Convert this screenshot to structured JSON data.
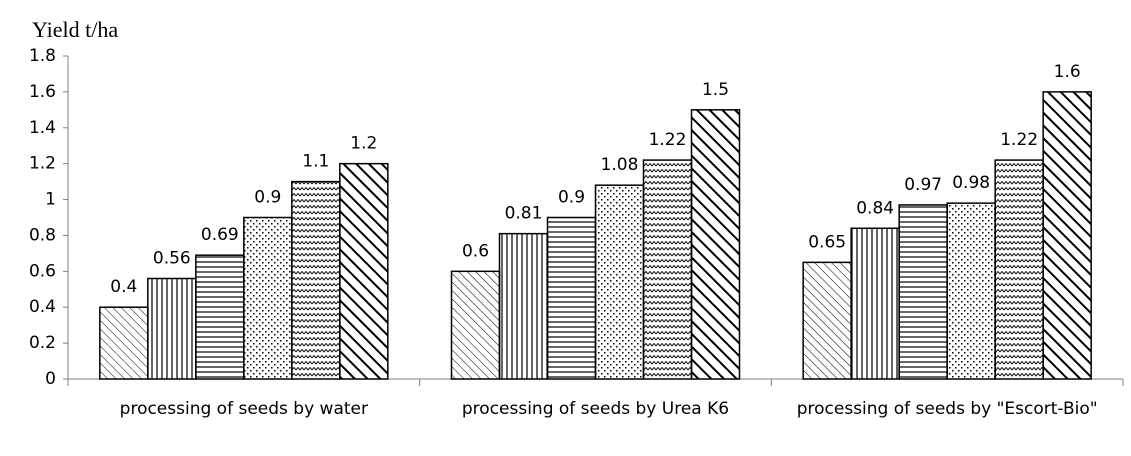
{
  "chart_data": {
    "type": "bar",
    "y_label": "Yield t/ha",
    "categories": [
      "processing of seeds by water",
      "processing of seeds by Urea K6",
      "processing of seeds by \"Escort-Bio\""
    ],
    "series": [
      {
        "values": [
          0.4,
          0.6,
          0.65
        ],
        "color": "#000000",
        "pattern": "diagonal-thin"
      },
      {
        "values": [
          0.56,
          0.81,
          0.84
        ],
        "color": "#000000",
        "pattern": "vertical"
      },
      {
        "values": [
          0.69,
          0.9,
          0.97
        ],
        "color": "#000000",
        "pattern": "horizontal"
      },
      {
        "values": [
          0.9,
          1.08,
          0.98
        ],
        "color": "#000000",
        "pattern": "dots"
      },
      {
        "values": [
          1.1,
          1.22,
          1.22
        ],
        "color": "#000000",
        "pattern": "wave"
      },
      {
        "values": [
          1.2,
          1.5,
          1.6
        ],
        "color": "#000000",
        "pattern": "diagonal-thick"
      }
    ],
    "ylim": [
      0,
      1.8
    ],
    "yticks": [
      0,
      0.2,
      0.4,
      0.6,
      0.8,
      1,
      1.2,
      1.4,
      1.6,
      1.8
    ],
    "grid": false,
    "legend": false
  }
}
